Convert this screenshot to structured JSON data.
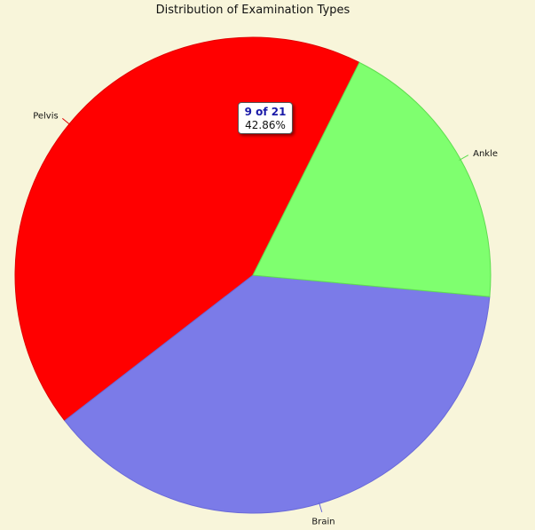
{
  "chart_data": {
    "type": "pie",
    "title": "Distribution of Examination Types",
    "start_angle_deg": -63.4,
    "direction": "counterclockwise",
    "slices": [
      {
        "label": "Pelvis",
        "value": 9,
        "color": "#ff0000",
        "border": "#e00000"
      },
      {
        "label": "Brain",
        "value": 8,
        "color": "#7b7be8",
        "border": "#6a6ad8"
      },
      {
        "label": "Ankle",
        "value": 4,
        "color": "#7fff6f",
        "border": "#5fdd50"
      }
    ],
    "total": 21
  },
  "background_color": "#f8f5da",
  "tooltip": {
    "count_text": "9 of 21",
    "percent_text": "42.86%"
  }
}
